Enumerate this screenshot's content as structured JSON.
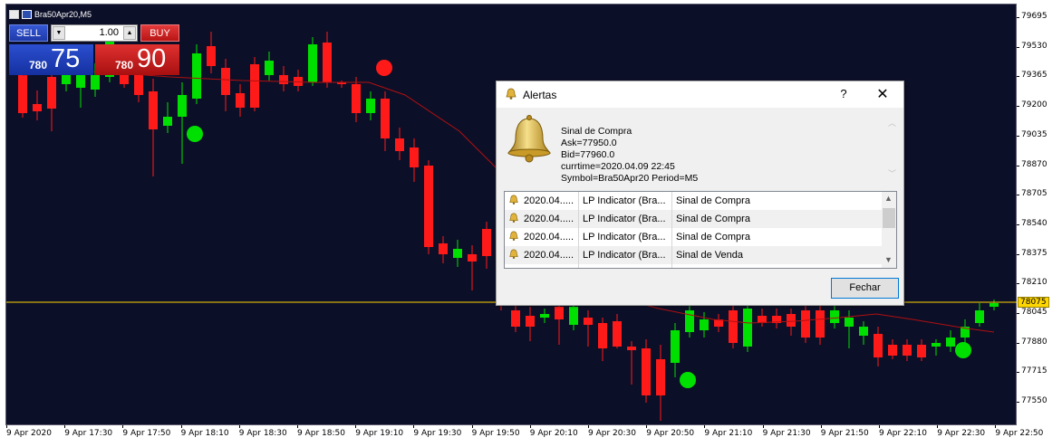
{
  "symbol_bar": {
    "label": "Bra50Apr20,M5"
  },
  "trade_panel": {
    "sell_label": "SELL",
    "buy_label": "BUY",
    "lot_value": "1.00",
    "sell_price_small": "780",
    "sell_price_big": "75",
    "buy_price_small": "780",
    "buy_price_big": "90"
  },
  "price_axis": {
    "labels": [
      "79695",
      "79530",
      "79365",
      "79200",
      "79035",
      "78870",
      "78705",
      "78540",
      "78375",
      "78210",
      "78045",
      "77880",
      "77715",
      "77550"
    ],
    "current_price": "78075"
  },
  "time_axis": {
    "labels": [
      "9 Apr 2020",
      "9 Apr 17:30",
      "9 Apr 17:50",
      "9 Apr 18:10",
      "9 Apr 18:30",
      "9 Apr 18:50",
      "9 Apr 19:10",
      "9 Apr 19:30",
      "9 Apr 19:50",
      "9 Apr 20:10",
      "9 Apr 20:30",
      "9 Apr 20:50",
      "9 Apr 21:10",
      "9 Apr 21:30",
      "9 Apr 21:50",
      "9 Apr 22:10",
      "9 Apr 22:30",
      "9 Apr 22:50"
    ]
  },
  "colors": {
    "bull": "#00e000",
    "bear": "#ff1a1a",
    "background": "#0c0f28",
    "ma": "#b01010",
    "current_price_line": "#ffd700"
  },
  "alert_dialog": {
    "title": "Alertas",
    "help": "?",
    "close": "✕",
    "message": {
      "line1": "Sinal de Compra",
      "line2": " Ask=77950.0",
      "line3": "Bid=77960.0",
      "line4": "currtime=2020.04.09 22:45",
      "line5": "Symbol=Bra50Apr20 Period=M5"
    },
    "rows": [
      {
        "time": "2020.04.....",
        "indicator": "LP Indicator (Bra...",
        "signal": "Sinal de Compra"
      },
      {
        "time": "2020.04.....",
        "indicator": "LP Indicator (Bra...",
        "signal": "Sinal de Compra"
      },
      {
        "time": "2020.04.....",
        "indicator": "LP Indicator (Bra...",
        "signal": "Sinal de Compra"
      },
      {
        "time": "2020.04.....",
        "indicator": "LP Indicator (Bra...",
        "signal": "Sinal de Venda"
      }
    ],
    "close_button": "Fechar"
  }
}
